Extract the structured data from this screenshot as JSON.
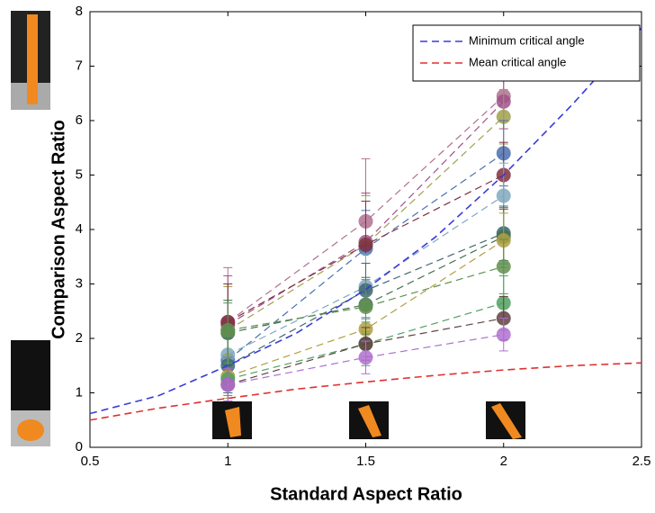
{
  "chart_data": {
    "type": "line",
    "xlabel": "Standard Aspect Ratio",
    "ylabel": "Comparison Aspect Ratio",
    "xlim": [
      0.5,
      2.5
    ],
    "xticks": [
      0.5,
      1,
      1.5,
      2,
      2.5
    ],
    "ylim": [
      0,
      8
    ],
    "yticks": [
      0,
      1,
      2,
      3,
      4,
      5,
      6,
      7,
      8
    ],
    "legend": "upper right",
    "x": [
      1,
      1.5,
      2
    ],
    "series": [
      {
        "color": "#b07090",
        "values": [
          2.3,
          4.15,
          6.45
        ],
        "errors": [
          1.0,
          1.15,
          0.45
        ]
      },
      {
        "color": "#a0508a",
        "values": [
          2.25,
          3.77,
          6.35
        ],
        "errors": [
          0.9,
          0.9,
          0.5
        ]
      },
      {
        "color": "#a0a050",
        "values": [
          2.15,
          3.72,
          6.07
        ],
        "errors": [
          0.8,
          0.9,
          0.5
        ]
      },
      {
        "color": "#4a70b0",
        "values": [
          1.6,
          3.65,
          5.4
        ],
        "errors": [
          0.6,
          0.7,
          0.6
        ]
      },
      {
        "color": "#803040",
        "values": [
          2.3,
          3.72,
          5.0
        ],
        "errors": [
          0.7,
          0.8,
          0.6
        ]
      },
      {
        "color": "#80a8c0",
        "values": [
          1.7,
          2.95,
          4.62
        ],
        "errors": [
          0.5,
          0.6,
          0.6
        ]
      },
      {
        "color": "#406870",
        "values": [
          1.5,
          2.88,
          3.93
        ],
        "errors": [
          0.5,
          0.5,
          0.5
        ]
      },
      {
        "color": "#407050",
        "values": [
          2.1,
          2.62,
          3.87
        ],
        "errors": [
          0.6,
          0.5,
          0.5
        ]
      },
      {
        "color": "#b0a040",
        "values": [
          1.3,
          2.17,
          3.8
        ],
        "errors": [
          0.4,
          0.5,
          0.5
        ]
      },
      {
        "color": "#609050",
        "values": [
          2.15,
          2.58,
          3.32
        ],
        "errors": [
          0.5,
          0.5,
          0.5
        ]
      },
      {
        "color": "#50a060",
        "values": [
          1.25,
          1.9,
          2.65
        ],
        "errors": [
          0.3,
          0.4,
          0.5
        ]
      },
      {
        "color": "#604040",
        "values": [
          1.15,
          1.9,
          2.37
        ],
        "errors": [
          0.3,
          0.3,
          0.4
        ]
      },
      {
        "color": "#b070d0",
        "values": [
          1.15,
          1.65,
          2.07
        ],
        "errors": [
          0.3,
          0.3,
          0.3
        ]
      },
      {
        "name": "Minimum critical angle",
        "color": "#3a3ad8",
        "x": [
          0.5,
          0.75,
          1,
          1.25,
          1.5,
          1.75,
          2,
          2.25,
          2.5
        ],
        "values": [
          0.62,
          0.95,
          1.5,
          2.1,
          2.9,
          3.85,
          5.0,
          6.3,
          7.7
        ]
      },
      {
        "name": "Mean critical angle",
        "color": "#e03030",
        "x": [
          0.5,
          0.75,
          1,
          1.25,
          1.5,
          1.75,
          2,
          2.25,
          2.5
        ],
        "values": [
          0.5,
          0.72,
          0.9,
          1.07,
          1.2,
          1.32,
          1.42,
          1.5,
          1.55
        ]
      }
    ]
  }
}
